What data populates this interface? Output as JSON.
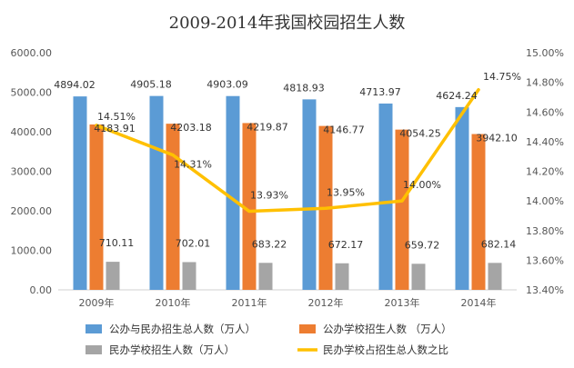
{
  "chart_data": {
    "type": "bar",
    "title": "2009-2014年我国校园招生人数",
    "categories": [
      "2009年",
      "2010年",
      "2011年",
      "2012年",
      "2013年",
      "2014年"
    ],
    "series": [
      {
        "name": "公办与民办招生总人数（万人）",
        "type": "bar",
        "axis": "left",
        "color": "#5b9bd5",
        "values": [
          4894.02,
          4905.18,
          4903.09,
          4818.93,
          4713.97,
          4624.24
        ],
        "labels": [
          "4894.02",
          "4905.18",
          "4903.09",
          "4818.93",
          "4713.97",
          "4624.24"
        ]
      },
      {
        "name": "公办学校招生人数 （万人）",
        "type": "bar",
        "axis": "left",
        "color": "#ed7d31",
        "values": [
          4183.91,
          4203.18,
          4219.87,
          4146.77,
          4054.25,
          3942.1
        ],
        "labels": [
          "4183.91",
          "4203.18",
          "4219.87",
          "4146.77",
          "4054.25",
          "3942.10"
        ]
      },
      {
        "name": "民办学校招生人数（万人）",
        "type": "bar",
        "axis": "left",
        "color": "#a5a5a5",
        "values": [
          710.11,
          702.01,
          683.22,
          672.17,
          659.72,
          682.14
        ],
        "labels": [
          "710.11",
          "702.01",
          "683.22",
          "672.17",
          "659.72",
          "682.14"
        ]
      },
      {
        "name": "民办学校占招生总人数之比",
        "type": "line",
        "axis": "right",
        "color": "#ffc000",
        "values": [
          14.51,
          14.31,
          13.93,
          13.95,
          14.0,
          14.75
        ],
        "labels": [
          "14.51%",
          "14.31%",
          "13.93%",
          "13.95%",
          "14.00%",
          "14.75%"
        ]
      }
    ],
    "y_left": {
      "min": 0,
      "max": 6000,
      "step": 1000,
      "tick_labels": [
        "0.00",
        "1000.00",
        "2000.00",
        "3000.00",
        "4000.00",
        "5000.00",
        "6000.00"
      ]
    },
    "y_right": {
      "min": 13.4,
      "max": 15.0,
      "step": 0.2,
      "tick_labels": [
        "13.40%",
        "13.60%",
        "13.80%",
        "14.00%",
        "14.20%",
        "14.40%",
        "14.60%",
        "14.80%",
        "15.00%"
      ]
    },
    "grid": false,
    "legend_position": "bottom"
  }
}
